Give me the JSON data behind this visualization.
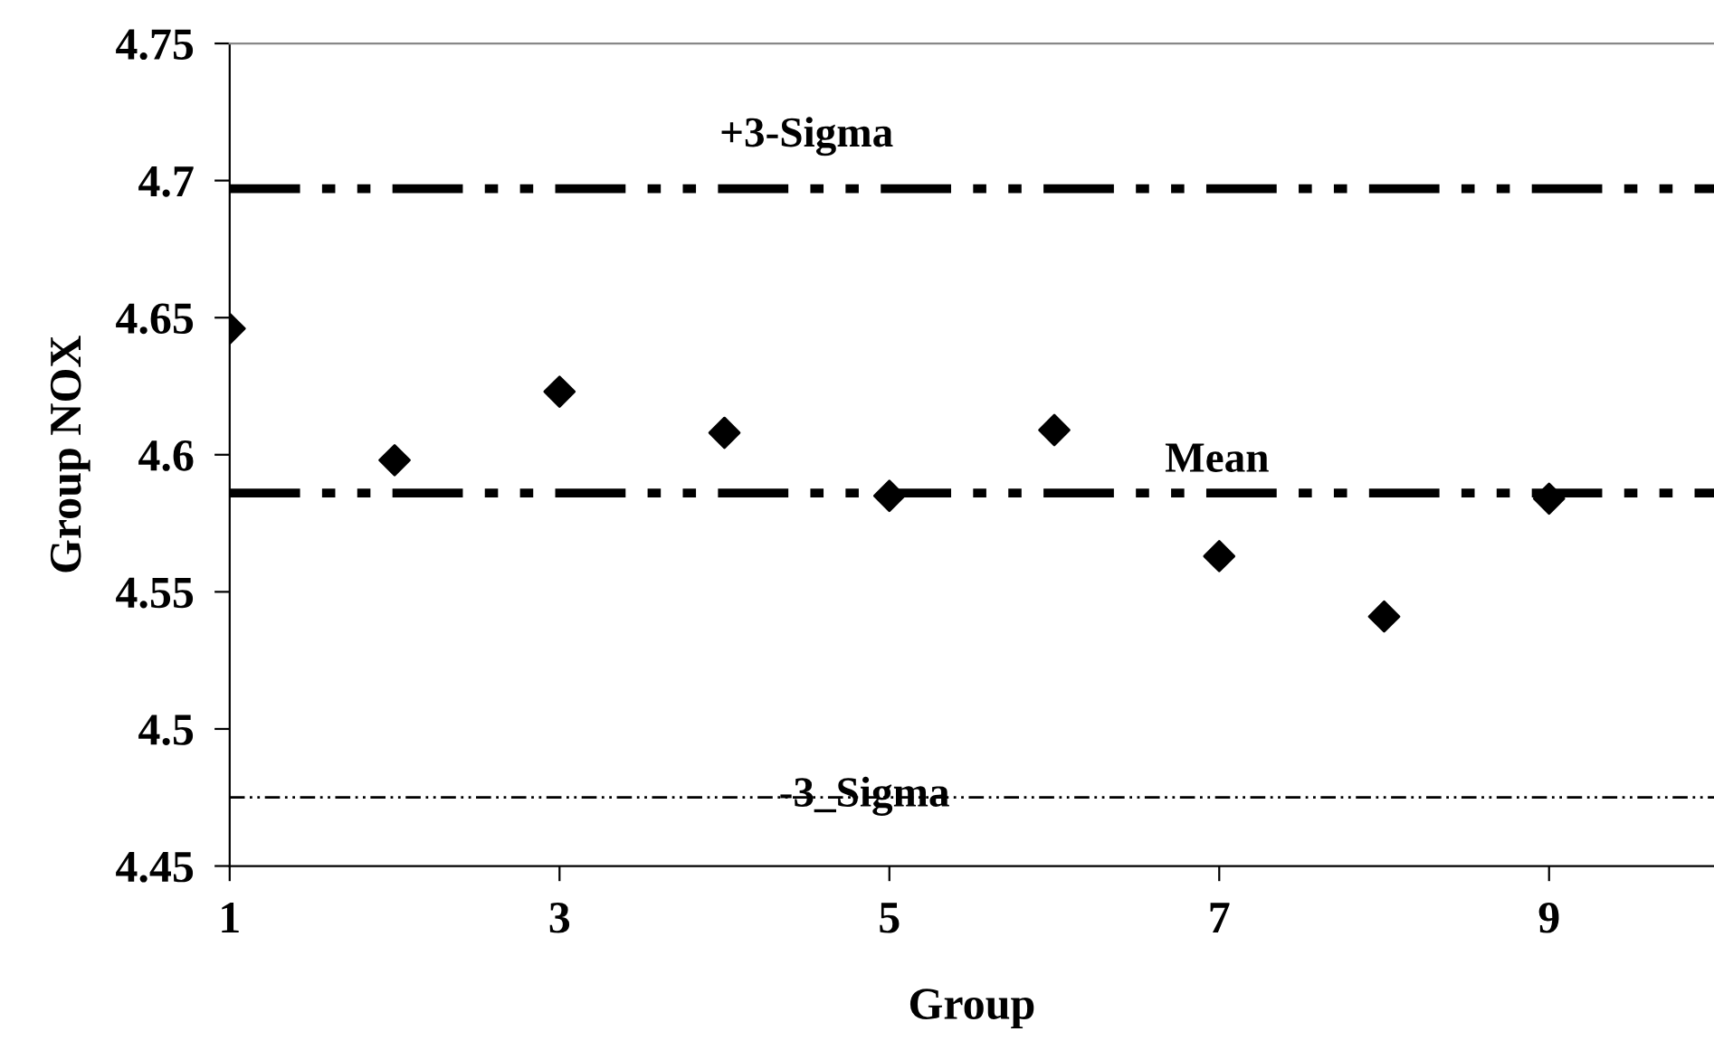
{
  "chart_data": {
    "type": "scatter",
    "xlabel": "Group",
    "ylabel": "Group NOX",
    "x": [
      1,
      2,
      3,
      4,
      5,
      6,
      7,
      8,
      9
    ],
    "series": [
      {
        "color": "#000000",
        "values": [
          4.646,
          4.598,
          4.623,
          4.608,
          4.585,
          4.609,
          4.563,
          4.541,
          4.584
        ]
      }
    ],
    "marker": "diamond",
    "xlim": [
      1,
      10
    ],
    "xticks": [
      1,
      3,
      5,
      7,
      9
    ],
    "ylim": [
      4.45,
      4.75
    ],
    "yticks": [
      4.45,
      4.5,
      4.55,
      4.6,
      4.65,
      4.7,
      4.75
    ],
    "ref_lines": [
      {
        "axis": "y",
        "value": 4.697,
        "label": "+3-Sigma",
        "color": "#000000",
        "line_style": "dashed"
      },
      {
        "axis": "y",
        "value": 4.586,
        "label": "Mean",
        "color": "#000000",
        "line_style": "dashed"
      },
      {
        "axis": "y",
        "value": 4.475,
        "label": "-3_Sigma",
        "color": "#000000",
        "line_style": "dotted"
      }
    ],
    "grid": false,
    "legend": false
  }
}
